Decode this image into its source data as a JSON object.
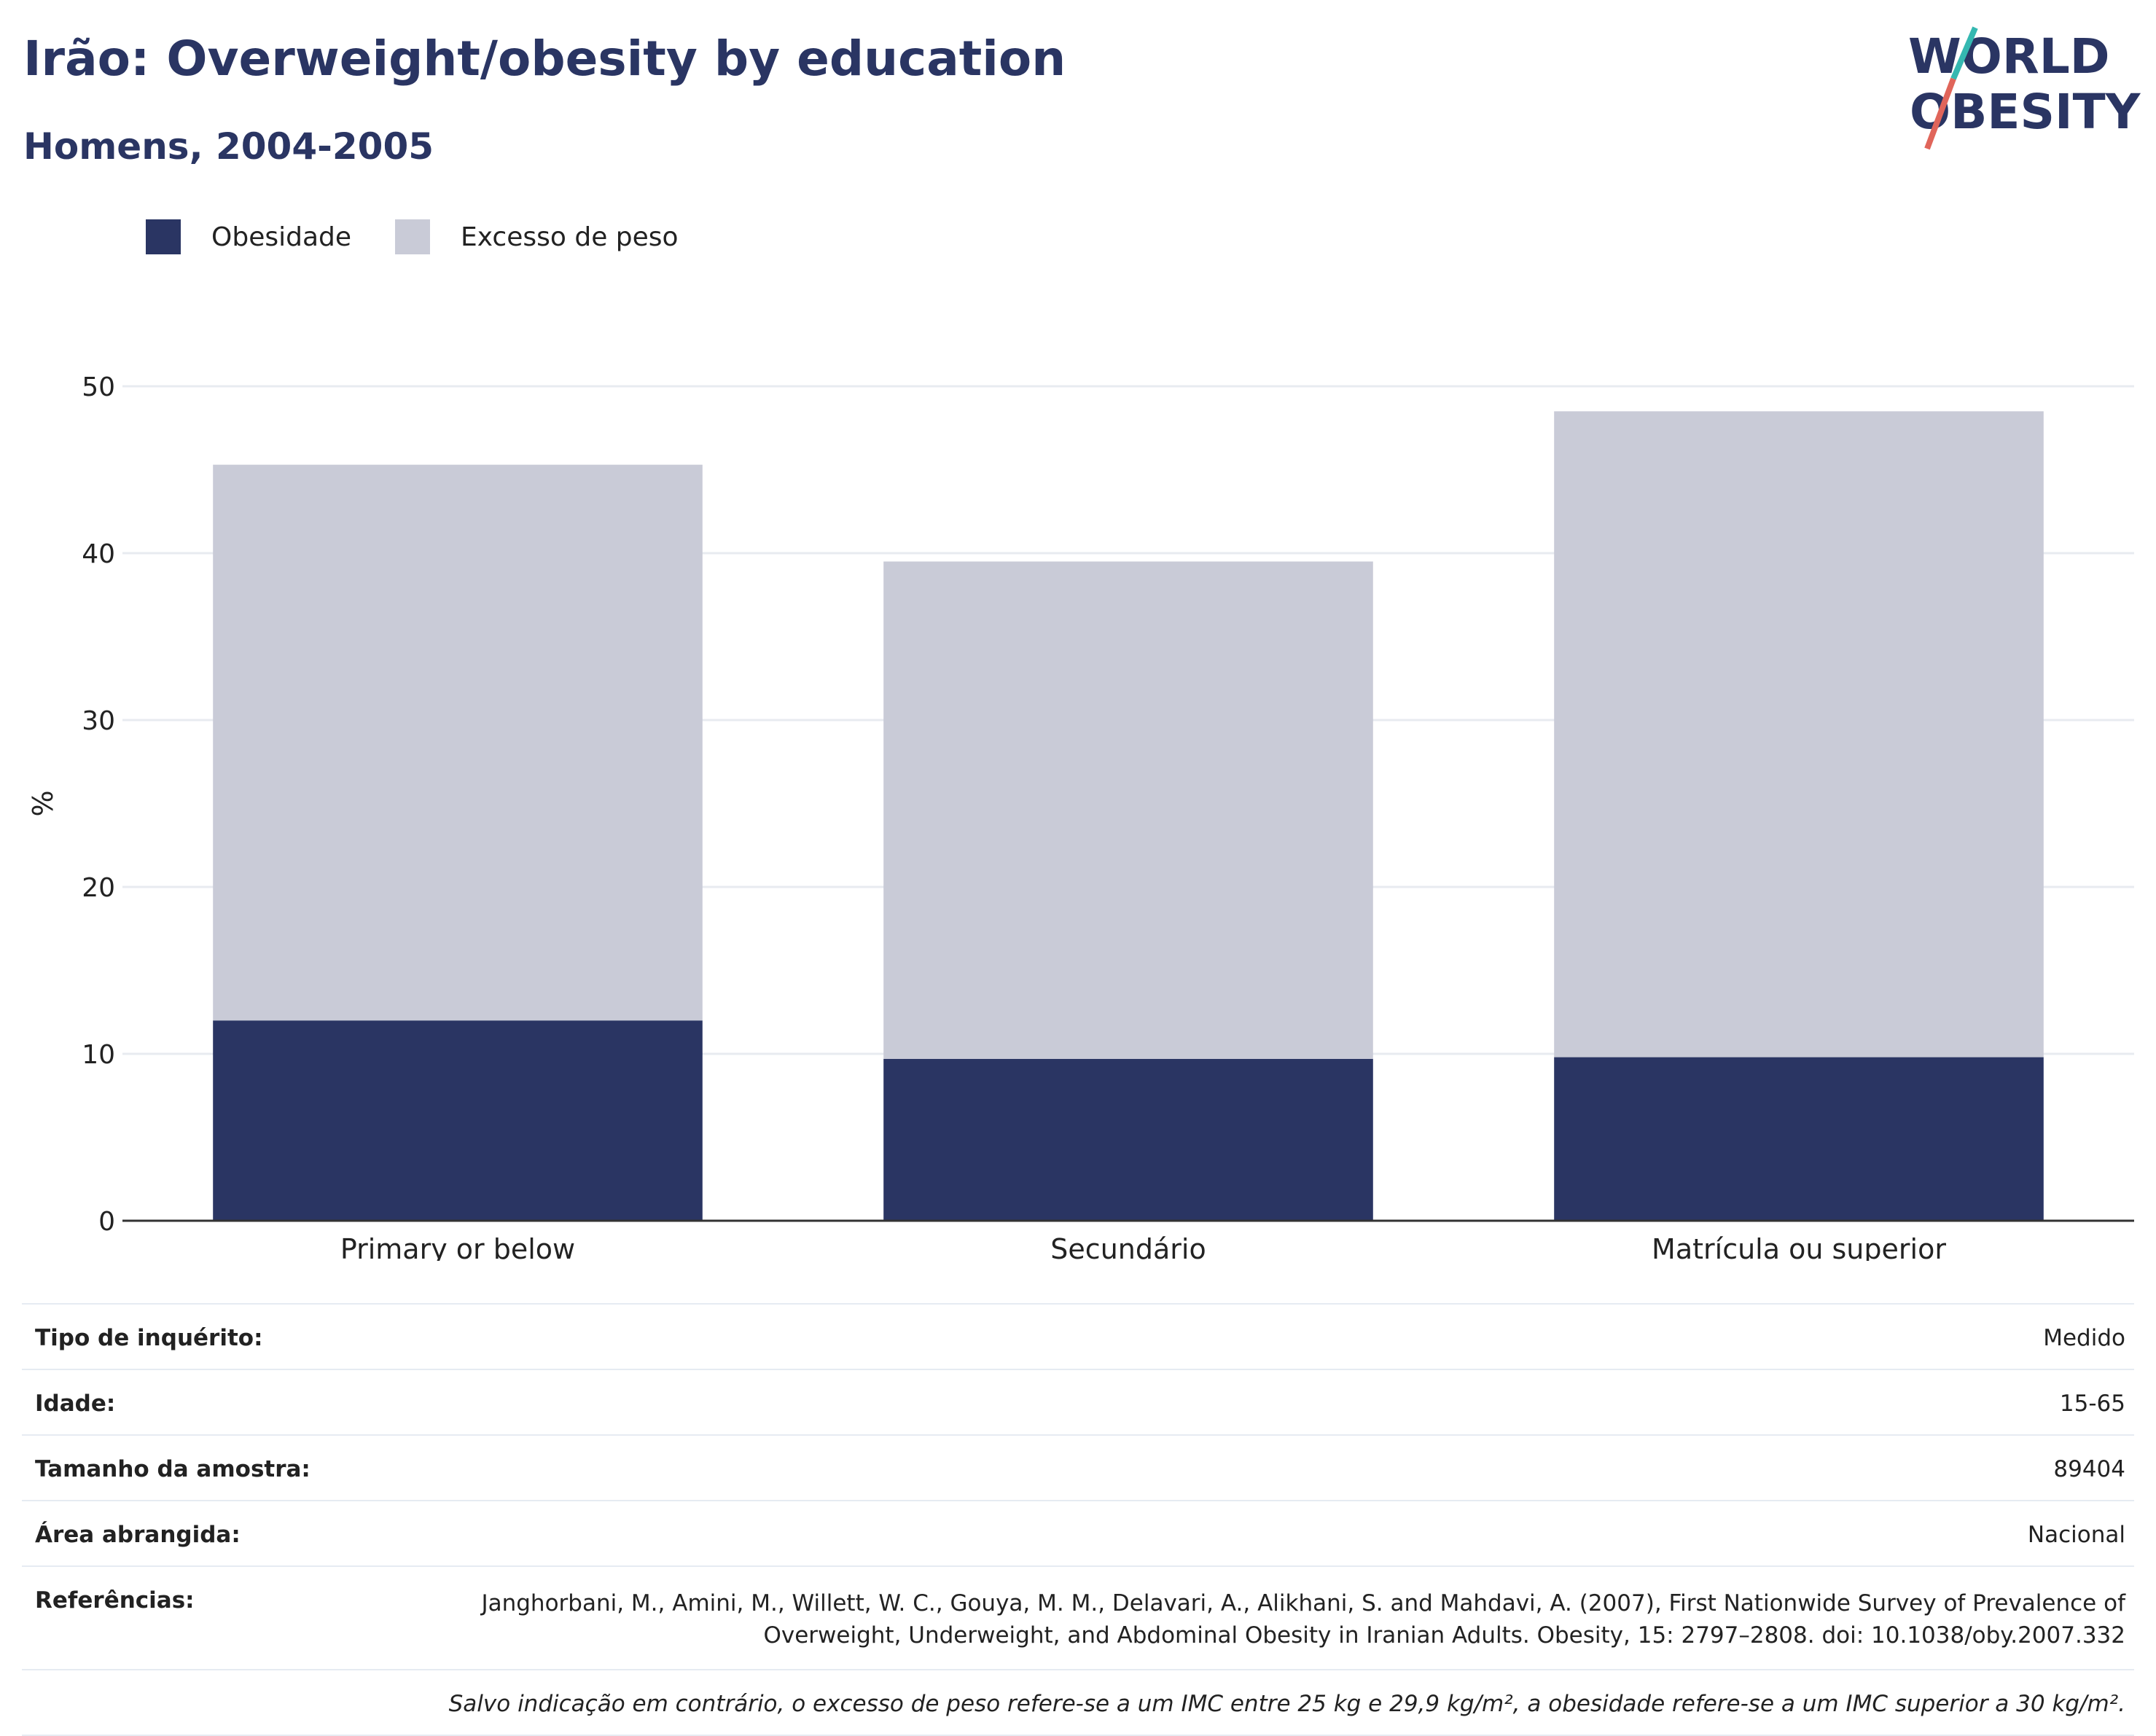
{
  "title": "Irão: Overweight/obesity by education",
  "subtitle": "Homens, 2004-2005",
  "logo": {
    "line1": "WORLD",
    "line2": "OBESITY",
    "accent_teal": "#35b8b1",
    "accent_red": "#e0655a"
  },
  "colors": {
    "obesity": "#2a3563",
    "overweight": "#c9cbd7",
    "text": "#2a3563"
  },
  "chart_data": {
    "type": "bar",
    "stacked": true,
    "categories": [
      "Primary or below",
      "Secundário",
      "Matrícula ou superior"
    ],
    "series": [
      {
        "name": "Obesidade",
        "values": [
          12.0,
          9.7,
          9.8
        ],
        "color": "#2a3563"
      },
      {
        "name": "Excesso de peso",
        "values": [
          33.3,
          29.8,
          38.7
        ],
        "color": "#c9cbd7"
      }
    ],
    "ylabel": "%",
    "ylim": [
      0,
      50
    ],
    "yticks": [
      0,
      10,
      20,
      30,
      40,
      50
    ],
    "grid": true,
    "legend_position": "top-left"
  },
  "meta": {
    "survey_type_label": "Tipo de inquérito:",
    "survey_type": "Medido",
    "age_label": "Idade:",
    "age": "15-65",
    "sample_label": "Tamanho da amostra:",
    "sample": "89404",
    "area_label": "Área abrangida:",
    "area": "Nacional",
    "ref_label": "Referências:",
    "ref": "Janghorbani, M., Amini, M., Willett, W. C., Gouya, M. M., Delavari, A., Alikhani, S. and Mahdavi, A. (2007), First Nationwide Survey of Prevalence of Overweight, Underweight, and Abdominal Obesity in Iranian Adults. Obesity, 15: 2797–2808. doi: 10.1038/oby.2007.332",
    "note": "Salvo indicação em contrário, o excesso de peso refere-se a um IMC entre 25 kg e 29,9 kg/m², a obesidade refere-se a um IMC superior a 30 kg/m²."
  }
}
